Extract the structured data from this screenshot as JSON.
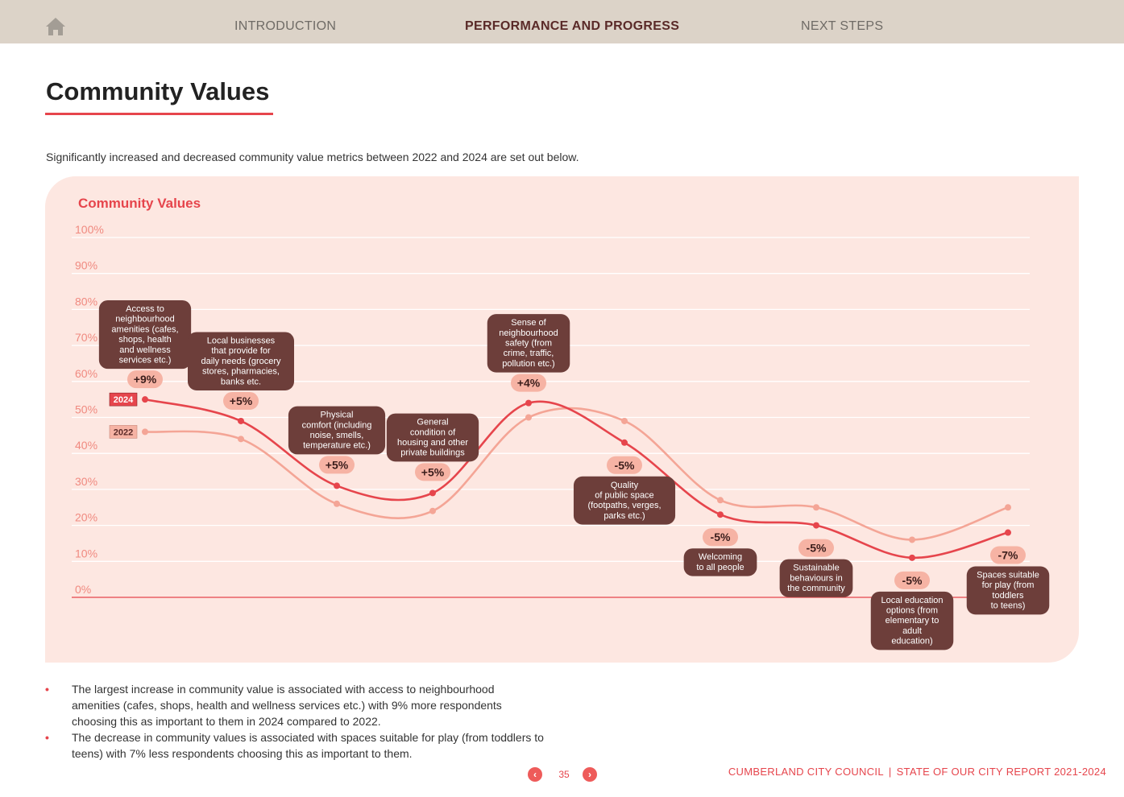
{
  "nav": {
    "items": [
      "INTRODUCTION",
      "PERFORMANCE AND PROGRESS",
      "NEXT STEPS"
    ],
    "active": "PERFORMANCE AND PROGRESS"
  },
  "page": {
    "title": "Community Values",
    "intro": "Significantly increased and decreased community value metrics between 2022 and 2024 are set out below."
  },
  "chart_data": {
    "type": "line",
    "title": "Community Values",
    "xlabel": "",
    "ylabel": "",
    "ylim": [
      0,
      100
    ],
    "y_ticks": [
      "100%",
      "90%",
      "80%",
      "70%",
      "60%",
      "50%",
      "40%",
      "30%",
      "20%",
      "10%",
      "0%"
    ],
    "grid": true,
    "categories": [
      "Access to neighbourhood amenities (cafes, shops, health and wellness services etc.)",
      "Local businesses that provide for daily needs (grocery stores, pharmacies, banks etc.",
      "Physical comfort (including noise, smells, temperature etc.)",
      "General condition of housing and other private buildings",
      "Sense of neighbourhood safety (from crime, traffic, pollution etc.)",
      "Quality of public space (footpaths, verges, parks etc.)",
      "Welcoming to all people",
      "Sustainable behaviours in the community",
      "Local education options (from elementary to adult education)",
      "Spaces suitable for play (from toddlers to teens)"
    ],
    "category_lines": [
      [
        "Access to",
        "neighbourhood",
        "amenities (cafes,",
        "shops, health",
        "and wellness",
        "services etc.)"
      ],
      [
        "Local businesses",
        "that provide for",
        "daily needs (grocery",
        "stores, pharmacies,",
        "banks etc."
      ],
      [
        "Physical",
        "comfort (including",
        "noise, smells,",
        "temperature etc.)"
      ],
      [
        "General",
        "condition of",
        "housing and other",
        "private buildings"
      ],
      [
        "Sense of",
        "neighbourhood",
        "safety (from",
        "crime, traffic,",
        "pollution etc.)"
      ],
      [
        "Quality",
        "of public space",
        "(footpaths, verges,",
        "parks etc.)"
      ],
      [
        "Welcoming",
        "to all people"
      ],
      [
        "Sustainable",
        "behaviours in",
        "the community"
      ],
      [
        "Local education",
        "options (from",
        "elementary to",
        "adult",
        "education)"
      ],
      [
        "Spaces suitable",
        "for play (from",
        "toddlers",
        "to teens)"
      ]
    ],
    "series": [
      {
        "name": "2024",
        "color": "#e6454c",
        "values": [
          55,
          49,
          31,
          29,
          54,
          43,
          23,
          20,
          11,
          18
        ]
      },
      {
        "name": "2022",
        "color": "#f4a596",
        "values": [
          46,
          44,
          26,
          24,
          50,
          49,
          27,
          25,
          16,
          25
        ]
      }
    ],
    "changes": [
      "+9%",
      "+5%",
      "+5%",
      "+5%",
      "+4%",
      "-5%",
      "-5%",
      "-5%",
      "-5%",
      "-7%"
    ]
  },
  "notes": [
    "The largest increase in community value is associated with access to neighbourhood amenities (cafes, shops, health and wellness services etc.) with 9% more respondents choosing this as important to them in 2024 compared to 2022.",
    "The decrease in community values is associated with spaces suitable for play (from toddlers to teens) with 7% less respondents choosing this as important to them."
  ],
  "pagination": {
    "page": "35",
    "prev_icon": "chevron-left-icon",
    "next_icon": "chevron-right-icon"
  },
  "footer": {
    "org": "CUMBERLAND CITY COUNCIL",
    "sep": "|",
    "report": "STATE OF OUR CITY REPORT 2021-2024"
  },
  "colors": {
    "accent": "#e6454c",
    "series_2022": "#f4a596",
    "label_box": "#6d3e3a",
    "panel": "#fde7e1",
    "nav_bg": "#dcd3c8"
  }
}
